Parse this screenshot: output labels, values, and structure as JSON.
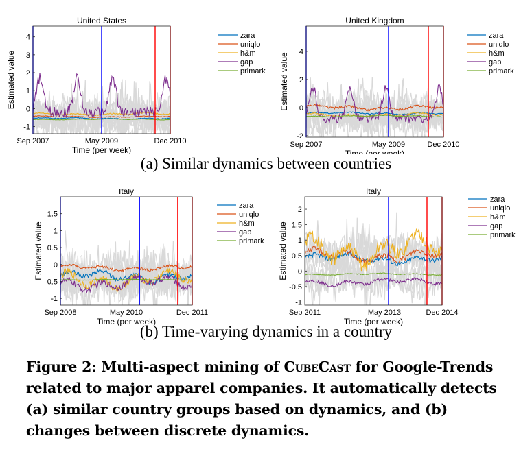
{
  "subcaption_a": "(a) Similar dynamics between countries",
  "subcaption_b": "(b) Time-varying dynamics in a country",
  "figure_caption": {
    "prefix": "Figure 2: Multi-aspect mining of ",
    "method": "CubeCast",
    "suffix": " for Google-Trends related to major apparel companies. It automatically detects (a) similar country groups based on dynamics, and (b) changes between discrete dynamics."
  },
  "colors": {
    "zara": "#0072bd",
    "uniqlo": "#d95319",
    "h&m": "#edb120",
    "gap": "#7e2f8e",
    "primark": "#77ac30",
    "background_series": "#d9d9d9",
    "regime_blue": "#0000ff",
    "regime_red": "#ff0000"
  },
  "chart_data": [
    {
      "type": "line",
      "title": "United States",
      "xlabel": "Time (per week)",
      "ylabel": "Estimated value",
      "xtick_labels": [
        "Sep 2007",
        "May 2009",
        "Dec 2010"
      ],
      "yticks": [
        -1,
        0,
        1,
        2,
        3,
        4
      ],
      "ylim": [
        -1.4,
        4.6
      ],
      "legend": [
        "zara",
        "uniqlo",
        "h&m",
        "gap",
        "primark"
      ],
      "legend_position": "right",
      "regime_boundaries": {
        "blue": [
          0.0,
          0.5
        ],
        "red": [
          0.89,
          1.0
        ]
      },
      "series": [
        {
          "name": "zara",
          "base": -0.55,
          "amp": 0.08
        },
        {
          "name": "uniqlo",
          "base": -0.45,
          "amp": 0.07
        },
        {
          "name": "h&m",
          "base": -0.3,
          "amp": 0.12
        },
        {
          "name": "gap",
          "base": -0.2,
          "amp": 1.9,
          "peaks": [
            0.05,
            0.32,
            0.58,
            0.97
          ]
        },
        {
          "name": "primark",
          "base": -0.6,
          "amp": 0.05
        }
      ]
    },
    {
      "type": "line",
      "title": "United Kingdom",
      "xlabel": "Time (per week)",
      "ylabel": "Estimated value",
      "xtick_labels": [
        "Sep 2007",
        "May 2009",
        "Dec 2010"
      ],
      "yticks": [
        -2,
        0,
        2,
        4
      ],
      "ylim": [
        -2.1,
        5.8
      ],
      "legend": [
        "zara",
        "uniqlo",
        "h&m",
        "gap",
        "primark"
      ],
      "legend_position": "right",
      "regime_boundaries": {
        "blue": [
          0.0,
          0.6
        ],
        "red": [
          0.89,
          1.0
        ]
      },
      "series": [
        {
          "name": "zara",
          "base": -0.4,
          "amp": 0.15
        },
        {
          "name": "uniqlo",
          "base": 0.0,
          "amp": 0.3
        },
        {
          "name": "h&m",
          "base": -0.5,
          "amp": 0.2
        },
        {
          "name": "gap",
          "base": -0.8,
          "amp": 2.2,
          "peaks": [
            0.05,
            0.32,
            0.58,
            0.97
          ]
        },
        {
          "name": "primark",
          "base": -0.6,
          "amp": 0.1
        }
      ]
    },
    {
      "type": "line",
      "title": "Italy",
      "xlabel": "Time (per week)",
      "ylabel": "Estimated value",
      "xtick_labels": [
        "Sep 2008",
        "May 2010",
        "Dec 2011"
      ],
      "yticks": [
        -1,
        -0.5,
        0,
        0.5,
        1,
        1.5
      ],
      "ylim": [
        -1.2,
        2.0
      ],
      "legend": [
        "zara",
        "uniqlo",
        "h&m",
        "gap",
        "primark"
      ],
      "legend_position": "right",
      "regime_boundaries": {
        "blue": [
          0.0,
          0.6
        ],
        "red": [
          0.89,
          1.0
        ]
      },
      "series": [
        {
          "name": "zara",
          "base": -0.35,
          "amp": 0.3
        },
        {
          "name": "uniqlo",
          "base": -0.1,
          "amp": 0.15
        },
        {
          "name": "h&m",
          "base": -0.45,
          "amp": 0.45
        },
        {
          "name": "gap",
          "base": -0.55,
          "amp": 0.35
        },
        {
          "name": "primark",
          "base": -0.45,
          "amp": 0.02
        }
      ]
    },
    {
      "type": "line",
      "title": "Italy",
      "xlabel": "Time (per week)",
      "ylabel": "Estimated value",
      "xtick_labels": [
        "Sep 2011",
        "May 2013",
        "Dec 2014"
      ],
      "yticks": [
        -1,
        -0.5,
        0,
        0.5,
        1,
        1.5,
        2
      ],
      "ylim": [
        -1.1,
        2.4
      ],
      "legend": [
        "zara",
        "uniqlo",
        "h&m",
        "gap",
        "primark"
      ],
      "legend_position": "right",
      "regime_boundaries": {
        "blue": [
          0.61
        ],
        "red": [
          0.89,
          1.0
        ]
      },
      "series": [
        {
          "name": "zara",
          "base": 0.4,
          "amp": 0.3
        },
        {
          "name": "uniqlo",
          "base": 0.5,
          "amp": 0.35
        },
        {
          "name": "h&m",
          "base": 0.7,
          "amp": 0.9
        },
        {
          "name": "gap",
          "base": -0.35,
          "amp": 0.2
        },
        {
          "name": "primark",
          "base": -0.1,
          "amp": 0.05
        }
      ]
    }
  ]
}
